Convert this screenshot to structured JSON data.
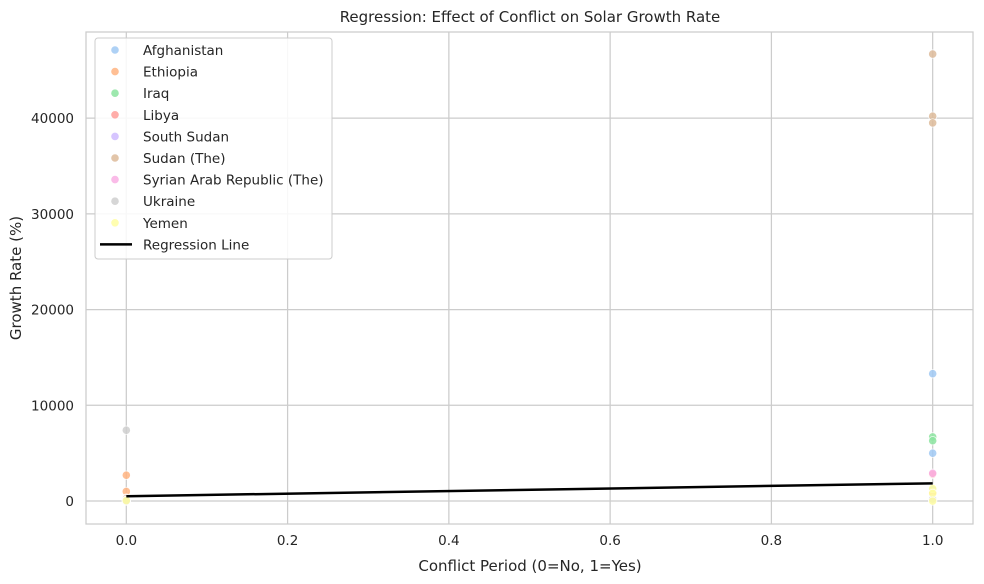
{
  "chart_data": {
    "type": "scatter",
    "title": "Regression: Effect of Conflict on Solar Growth Rate",
    "xlabel": "Conflict Period (0=No, 1=Yes)",
    "ylabel": "Growth Rate (%)",
    "xlim": [
      -0.05,
      1.05
    ],
    "ylim": [
      -2400,
      49000
    ],
    "xticks": [
      0.0,
      0.2,
      0.4,
      0.6,
      0.8,
      1.0
    ],
    "xtick_labels": [
      "0.0",
      "0.2",
      "0.4",
      "0.6",
      "0.8",
      "1.0"
    ],
    "yticks": [
      0,
      10000,
      20000,
      30000,
      40000
    ],
    "ytick_labels": [
      "0",
      "10000",
      "20000",
      "30000",
      "40000"
    ],
    "grid": true,
    "legend_position": "top-left",
    "series": [
      {
        "name": "Afghanistan",
        "color": "#a1c9f4",
        "points": [
          [
            0,
            200
          ],
          [
            0,
            0
          ],
          [
            1,
            13300
          ],
          [
            1,
            5000
          ],
          [
            1,
            1200
          ]
        ]
      },
      {
        "name": "Ethiopia",
        "color": "#ffb482",
        "points": [
          [
            0,
            2700
          ],
          [
            0,
            1000
          ],
          [
            0,
            200
          ],
          [
            1,
            900
          ]
        ]
      },
      {
        "name": "Iraq",
        "color": "#8de5a1",
        "points": [
          [
            1,
            6700
          ],
          [
            1,
            6300
          ],
          [
            0,
            100
          ]
        ]
      },
      {
        "name": "Libya",
        "color": "#ff9f9b",
        "points": [
          [
            0,
            300
          ],
          [
            1,
            2800
          ]
        ]
      },
      {
        "name": "South Sudan",
        "color": "#d0bbff",
        "points": [
          [
            0,
            150
          ],
          [
            1,
            100
          ]
        ]
      },
      {
        "name": "Sudan (The)",
        "color": "#debb9b",
        "points": [
          [
            1,
            46700
          ],
          [
            1,
            40200
          ],
          [
            1,
            39500
          ],
          [
            0,
            250
          ]
        ]
      },
      {
        "name": "Syrian Arab Republic (The)",
        "color": "#fab0e4",
        "points": [
          [
            1,
            2900
          ],
          [
            0,
            100
          ]
        ]
      },
      {
        "name": "Ukraine",
        "color": "#cfcfcf",
        "points": [
          [
            0,
            7400
          ],
          [
            0,
            0
          ],
          [
            1,
            200
          ]
        ]
      },
      {
        "name": "Yemen",
        "color": "#fffea3",
        "points": [
          [
            1,
            1300
          ],
          [
            1,
            800
          ],
          [
            1,
            0
          ],
          [
            0,
            50
          ]
        ]
      }
    ],
    "regression_line": {
      "name": "Regression Line",
      "color": "#000000",
      "x": [
        0,
        1
      ],
      "y": [
        500,
        1850
      ]
    }
  }
}
